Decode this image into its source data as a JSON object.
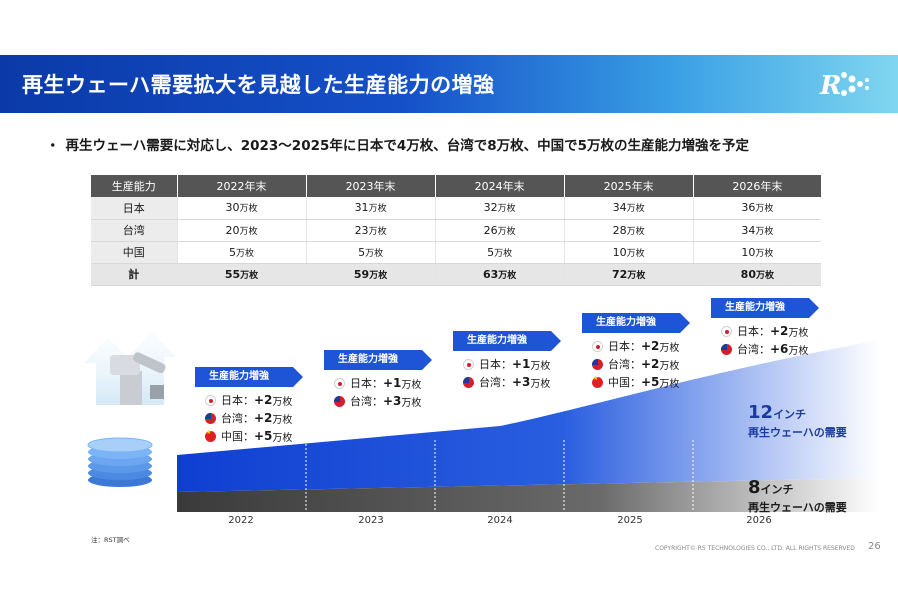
{
  "title": "再生ウェーハ需要拡大を見越した生産能力の増強",
  "bullet": "再生ウェーハ需要に対応し、2023～2025年に日本で4万枚、台湾で8万枚、中国で5万枚の生産能力増強を予定",
  "bullet_marker": "・",
  "logo_text": "R",
  "table": {
    "headers": [
      "生産能力",
      "2022年末",
      "2023年末",
      "2024年末",
      "2025年末",
      "2026年末"
    ],
    "unit": "万枚",
    "rows": [
      {
        "label": "日本",
        "values": [
          "30",
          "31",
          "32",
          "34",
          "36"
        ]
      },
      {
        "label": "台湾",
        "values": [
          "20",
          "23",
          "26",
          "28",
          "34"
        ]
      },
      {
        "label": "中国",
        "values": [
          "5",
          "5",
          "5",
          "10",
          "10"
        ]
      },
      {
        "label": "計",
        "values": [
          "55",
          "59",
          "63",
          "72",
          "80"
        ]
      }
    ]
  },
  "increase_boxes": [
    {
      "heading": "生産能力増強",
      "items": [
        {
          "country": "日本",
          "flag": "jp",
          "sep": "：",
          "value": "+2",
          "unit": "万枚"
        },
        {
          "country": "台湾",
          "flag": "tw",
          "sep": "：",
          "value": "+2",
          "unit": "万枚"
        },
        {
          "country": "中国",
          "flag": "cn",
          "sep": "：",
          "value": "+5",
          "unit": "万枚"
        }
      ]
    },
    {
      "heading": "生産能力増強",
      "items": [
        {
          "country": "日本",
          "flag": "jp",
          "sep": "：",
          "value": "+1",
          "unit": "万枚"
        },
        {
          "country": "台湾",
          "flag": "tw",
          "sep": "：",
          "value": "+3",
          "unit": "万枚"
        }
      ]
    },
    {
      "heading": "生産能力増強",
      "items": [
        {
          "country": "日本",
          "flag": "jp",
          "sep": "：",
          "value": "+1",
          "unit": "万枚"
        },
        {
          "country": "台湾",
          "flag": "tw",
          "sep": "：",
          "value": "+3",
          "unit": "万枚"
        }
      ]
    },
    {
      "heading": "生産能力増強",
      "items": [
        {
          "country": "日本",
          "flag": "jp",
          "sep": "：",
          "value": "+2",
          "unit": "万枚"
        },
        {
          "country": "台湾",
          "flag": "tw",
          "sep": "：",
          "value": "+2",
          "unit": "万枚"
        },
        {
          "country": "中国",
          "flag": "cn",
          "sep": "：",
          "value": "+5",
          "unit": "万枚"
        }
      ]
    },
    {
      "heading": "生産能力増強",
      "items": [
        {
          "country": "日本",
          "flag": "jp",
          "sep": "：",
          "value": "+2",
          "unit": "万枚"
        },
        {
          "country": "台湾",
          "flag": "tw",
          "sep": "：",
          "value": "+6",
          "unit": "万枚"
        }
      ]
    }
  ],
  "chart_data": {
    "type": "area",
    "x": [
      "2022",
      "2023",
      "2024",
      "2025",
      "2026"
    ],
    "series": [
      {
        "name": "12インチ 再生ウェーハの需要",
        "color": "#1a4fd8"
      },
      {
        "name": "8インチ 再生ウェーハの需要",
        "color": "#4a4a4a"
      }
    ],
    "grid": false
  },
  "legend": {
    "twelve": {
      "num": "12",
      "unit": "インチ",
      "sub": "再生ウェーハの需要"
    },
    "eight": {
      "num": "8",
      "unit": "インチ",
      "sub": "再生ウェーハの需要"
    }
  },
  "note": "注：RST調べ",
  "copyright": "COPYRIGHT© RS TECHNOLOGIES CO., LTD. ALL RIGHTS RESERVED",
  "page_number": "26",
  "colors": {
    "brand_blue": "#1550c9",
    "accent_blue": "#1e55d6",
    "area_12": "#1a4fd8",
    "area_8": "#4a4a4a"
  }
}
